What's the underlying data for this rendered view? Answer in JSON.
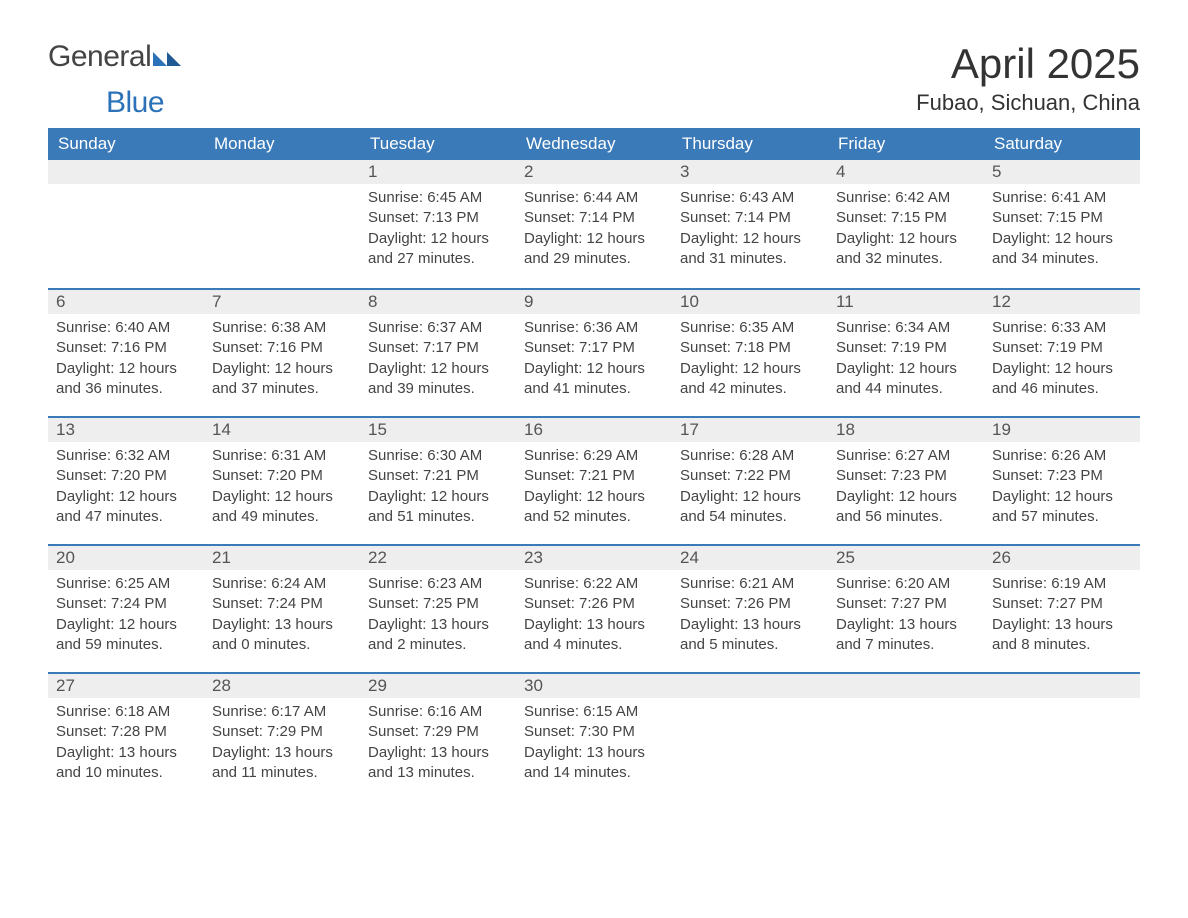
{
  "brand": {
    "part1": "General",
    "part2": "Blue"
  },
  "header": {
    "month_title": "April 2025",
    "location": "Fubao, Sichuan, China"
  },
  "colors": {
    "header_bg": "#3a7ab8",
    "header_text": "#ffffff",
    "daynum_bg": "#eeeeee",
    "top_border": "#3a7ab8",
    "body_bg": "#ffffff",
    "text": "#444444"
  },
  "dayNames": [
    "Sunday",
    "Monday",
    "Tuesday",
    "Wednesday",
    "Thursday",
    "Friday",
    "Saturday"
  ],
  "weeks": [
    [
      null,
      null,
      {
        "n": "1",
        "sunrise": "6:45 AM",
        "sunset": "7:13 PM",
        "dayh": "12",
        "daym": "27"
      },
      {
        "n": "2",
        "sunrise": "6:44 AM",
        "sunset": "7:14 PM",
        "dayh": "12",
        "daym": "29"
      },
      {
        "n": "3",
        "sunrise": "6:43 AM",
        "sunset": "7:14 PM",
        "dayh": "12",
        "daym": "31"
      },
      {
        "n": "4",
        "sunrise": "6:42 AM",
        "sunset": "7:15 PM",
        "dayh": "12",
        "daym": "32"
      },
      {
        "n": "5",
        "sunrise": "6:41 AM",
        "sunset": "7:15 PM",
        "dayh": "12",
        "daym": "34"
      }
    ],
    [
      {
        "n": "6",
        "sunrise": "6:40 AM",
        "sunset": "7:16 PM",
        "dayh": "12",
        "daym": "36"
      },
      {
        "n": "7",
        "sunrise": "6:38 AM",
        "sunset": "7:16 PM",
        "dayh": "12",
        "daym": "37"
      },
      {
        "n": "8",
        "sunrise": "6:37 AM",
        "sunset": "7:17 PM",
        "dayh": "12",
        "daym": "39"
      },
      {
        "n": "9",
        "sunrise": "6:36 AM",
        "sunset": "7:17 PM",
        "dayh": "12",
        "daym": "41"
      },
      {
        "n": "10",
        "sunrise": "6:35 AM",
        "sunset": "7:18 PM",
        "dayh": "12",
        "daym": "42"
      },
      {
        "n": "11",
        "sunrise": "6:34 AM",
        "sunset": "7:19 PM",
        "dayh": "12",
        "daym": "44"
      },
      {
        "n": "12",
        "sunrise": "6:33 AM",
        "sunset": "7:19 PM",
        "dayh": "12",
        "daym": "46"
      }
    ],
    [
      {
        "n": "13",
        "sunrise": "6:32 AM",
        "sunset": "7:20 PM",
        "dayh": "12",
        "daym": "47"
      },
      {
        "n": "14",
        "sunrise": "6:31 AM",
        "sunset": "7:20 PM",
        "dayh": "12",
        "daym": "49"
      },
      {
        "n": "15",
        "sunrise": "6:30 AM",
        "sunset": "7:21 PM",
        "dayh": "12",
        "daym": "51"
      },
      {
        "n": "16",
        "sunrise": "6:29 AM",
        "sunset": "7:21 PM",
        "dayh": "12",
        "daym": "52"
      },
      {
        "n": "17",
        "sunrise": "6:28 AM",
        "sunset": "7:22 PM",
        "dayh": "12",
        "daym": "54"
      },
      {
        "n": "18",
        "sunrise": "6:27 AM",
        "sunset": "7:23 PM",
        "dayh": "12",
        "daym": "56"
      },
      {
        "n": "19",
        "sunrise": "6:26 AM",
        "sunset": "7:23 PM",
        "dayh": "12",
        "daym": "57"
      }
    ],
    [
      {
        "n": "20",
        "sunrise": "6:25 AM",
        "sunset": "7:24 PM",
        "dayh": "12",
        "daym": "59"
      },
      {
        "n": "21",
        "sunrise": "6:24 AM",
        "sunset": "7:24 PM",
        "dayh": "13",
        "daym": "0"
      },
      {
        "n": "22",
        "sunrise": "6:23 AM",
        "sunset": "7:25 PM",
        "dayh": "13",
        "daym": "2"
      },
      {
        "n": "23",
        "sunrise": "6:22 AM",
        "sunset": "7:26 PM",
        "dayh": "13",
        "daym": "4"
      },
      {
        "n": "24",
        "sunrise": "6:21 AM",
        "sunset": "7:26 PM",
        "dayh": "13",
        "daym": "5"
      },
      {
        "n": "25",
        "sunrise": "6:20 AM",
        "sunset": "7:27 PM",
        "dayh": "13",
        "daym": "7"
      },
      {
        "n": "26",
        "sunrise": "6:19 AM",
        "sunset": "7:27 PM",
        "dayh": "13",
        "daym": "8"
      }
    ],
    [
      {
        "n": "27",
        "sunrise": "6:18 AM",
        "sunset": "7:28 PM",
        "dayh": "13",
        "daym": "10"
      },
      {
        "n": "28",
        "sunrise": "6:17 AM",
        "sunset": "7:29 PM",
        "dayh": "13",
        "daym": "11"
      },
      {
        "n": "29",
        "sunrise": "6:16 AM",
        "sunset": "7:29 PM",
        "dayh": "13",
        "daym": "13"
      },
      {
        "n": "30",
        "sunrise": "6:15 AM",
        "sunset": "7:30 PM",
        "dayh": "13",
        "daym": "14"
      },
      null,
      null,
      null
    ]
  ],
  "labels": {
    "sunrise": "Sunrise: ",
    "sunset": "Sunset: ",
    "daylight1": "Daylight: ",
    "daylight2": " hours and ",
    "daylight3": " minutes."
  }
}
